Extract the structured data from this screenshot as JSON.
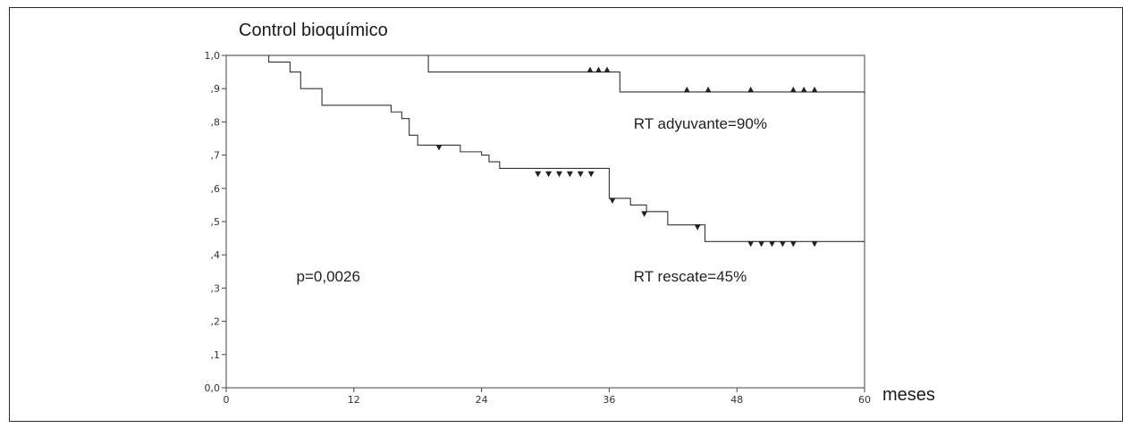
{
  "chart_data": {
    "type": "line",
    "title": "",
    "ylabel": "Control bioquímico",
    "xlabel": "meses",
    "xlim": [
      0,
      60
    ],
    "ylim": [
      0,
      1
    ],
    "x_ticks": [
      0,
      12,
      24,
      36,
      48,
      60
    ],
    "x_tick_labels": [
      "0",
      "12",
      "24",
      "36",
      "48",
      "60"
    ],
    "y_ticks": [
      0,
      0.1,
      0.2,
      0.3,
      0.4,
      0.5,
      0.6,
      0.7,
      0.8,
      0.9,
      1.0
    ],
    "y_tick_labels": [
      "0,0",
      ",1",
      ",2",
      ",3",
      ",4",
      ",5",
      ",6",
      ",7",
      ",8",
      ",9",
      "1,0"
    ],
    "grid": false,
    "legend": "none",
    "series": [
      {
        "label": "RT adyuvante=90%",
        "color": "#333333",
        "steps": [
          [
            0,
            1.0
          ],
          [
            19,
            0.95
          ],
          [
            37,
            0.89
          ],
          [
            60,
            0.885
          ]
        ],
        "censor_marker": "triangle-up",
        "censors": [
          [
            34.2,
            0.95
          ],
          [
            35.0,
            0.95
          ],
          [
            35.8,
            0.95
          ],
          [
            43.3,
            0.89
          ],
          [
            45.3,
            0.89
          ],
          [
            49.3,
            0.89
          ],
          [
            53.3,
            0.89
          ],
          [
            54.3,
            0.89
          ],
          [
            55.3,
            0.89
          ]
        ]
      },
      {
        "label": "RT rescate=45%",
        "color": "#333333",
        "steps": [
          [
            0,
            1.0
          ],
          [
            4,
            0.98
          ],
          [
            6,
            0.95
          ],
          [
            7,
            0.9
          ],
          [
            9,
            0.85
          ],
          [
            15.5,
            0.83
          ],
          [
            16.5,
            0.81
          ],
          [
            17.2,
            0.76
          ],
          [
            18,
            0.73
          ],
          [
            22,
            0.71
          ],
          [
            24,
            0.7
          ],
          [
            24.7,
            0.68
          ],
          [
            25.7,
            0.66
          ],
          [
            36,
            0.57
          ],
          [
            38,
            0.55
          ],
          [
            39.5,
            0.53
          ],
          [
            41.5,
            0.49
          ],
          [
            45,
            0.44
          ],
          [
            60,
            0.44
          ]
        ],
        "censor_marker": "triangle-down",
        "censors": [
          [
            20,
            0.73
          ],
          [
            29.3,
            0.65
          ],
          [
            30.3,
            0.65
          ],
          [
            31.3,
            0.65
          ],
          [
            32.3,
            0.65
          ],
          [
            33.3,
            0.65
          ],
          [
            34.3,
            0.65
          ],
          [
            36.3,
            0.57
          ],
          [
            39.3,
            0.53
          ],
          [
            44.3,
            0.49
          ],
          [
            49.3,
            0.44
          ],
          [
            50.3,
            0.44
          ],
          [
            51.3,
            0.44
          ],
          [
            52.3,
            0.44
          ],
          [
            53.3,
            0.44
          ],
          [
            55.3,
            0.44
          ]
        ]
      }
    ],
    "annotations": [
      {
        "text": "RT adyuvante=90%",
        "x": 38.3,
        "y": 0.78
      },
      {
        "text": "RT rescate=45%",
        "x": 38.3,
        "y": 0.32
      },
      {
        "text": "p=0,0026",
        "x": 6.6,
        "y": 0.32
      }
    ]
  }
}
